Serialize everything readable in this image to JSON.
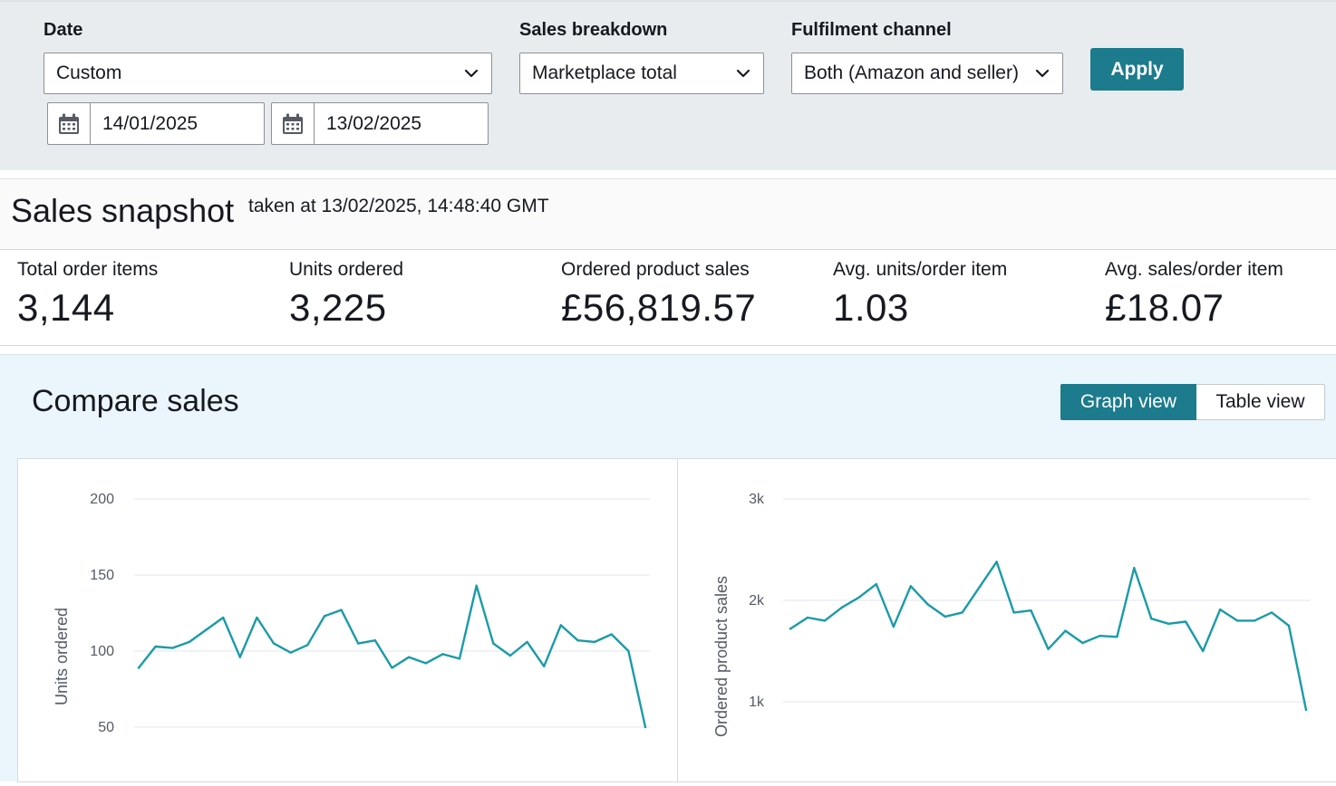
{
  "filters": {
    "date": {
      "label": "Date",
      "value": "Custom",
      "start": "14/01/2025",
      "end": "13/02/2025"
    },
    "breakdown": {
      "label": "Sales breakdown",
      "value": "Marketplace total"
    },
    "channel": {
      "label": "Fulfilment channel",
      "value": "Both (Amazon and seller)"
    },
    "apply_label": "Apply"
  },
  "snapshot": {
    "title": "Sales snapshot",
    "taken_at": "taken at 13/02/2025, 14:48:40 GMT",
    "metrics": [
      {
        "label": "Total order items",
        "value": "3,144"
      },
      {
        "label": "Units ordered",
        "value": "3,225"
      },
      {
        "label": "Ordered product sales",
        "value": "£56,819.57"
      },
      {
        "label": "Avg. units/order item",
        "value": "1.03"
      },
      {
        "label": "Avg. sales/order item",
        "value": "£18.07"
      }
    ]
  },
  "compare": {
    "title": "Compare sales",
    "views": {
      "graph": "Graph view",
      "table": "Table view",
      "active": "graph"
    }
  },
  "colors": {
    "accent": "#1c7b8c",
    "line": "#1a9ba8"
  },
  "chart_data": [
    {
      "type": "line",
      "ylabel": "Units ordered",
      "xlabel": "",
      "ylim": [
        50,
        200
      ],
      "yticks": [
        "200",
        "150",
        "100",
        "50"
      ],
      "ytick_values": [
        200,
        150,
        100,
        50
      ],
      "grid": true,
      "series": [
        {
          "values": [
            89,
            103,
            102,
            106,
            114,
            122,
            96,
            122,
            105,
            99,
            104,
            123,
            127,
            105,
            107,
            89,
            96,
            92,
            98,
            95,
            143,
            105,
            97,
            106,
            90,
            117,
            107,
            106,
            111,
            100,
            50
          ]
        }
      ]
    },
    {
      "type": "line",
      "ylabel": "Ordered product sales",
      "xlabel": "",
      "ylim": [
        1000,
        3000
      ],
      "yticks": [
        "3k",
        "2k",
        "1k"
      ],
      "ytick_values": [
        3000,
        2000,
        1000
      ],
      "grid": true,
      "series": [
        {
          "values": [
            1720,
            1830,
            1800,
            1930,
            2030,
            2160,
            1740,
            2140,
            1960,
            1840,
            1880,
            2130,
            2380,
            1880,
            1900,
            1520,
            1700,
            1580,
            1650,
            1640,
            2320,
            1820,
            1770,
            1790,
            1500,
            1910,
            1800,
            1800,
            1880,
            1750,
            920
          ]
        }
      ]
    }
  ]
}
